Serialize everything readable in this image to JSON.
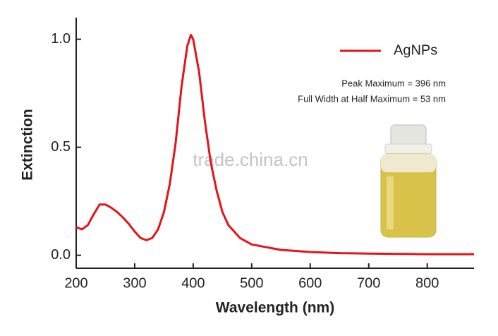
{
  "chart_data": {
    "type": "line",
    "xlabel": "Wavelength (nm)",
    "ylabel": "Extinction",
    "x": [
      200,
      210,
      220,
      230,
      240,
      250,
      260,
      270,
      280,
      290,
      300,
      310,
      320,
      330,
      340,
      350,
      360,
      370,
      380,
      390,
      396,
      400,
      410,
      420,
      430,
      440,
      450,
      460,
      480,
      500,
      550,
      600,
      650,
      700,
      800,
      880
    ],
    "series": [
      {
        "name": "AgNPs",
        "color": "#e3141b",
        "values": [
          0.13,
          0.12,
          0.14,
          0.19,
          0.235,
          0.235,
          0.22,
          0.2,
          0.175,
          0.145,
          0.11,
          0.08,
          0.07,
          0.08,
          0.12,
          0.2,
          0.33,
          0.52,
          0.78,
          0.97,
          1.02,
          1.0,
          0.85,
          0.62,
          0.43,
          0.3,
          0.2,
          0.14,
          0.08,
          0.05,
          0.025,
          0.015,
          0.01,
          0.008,
          0.005,
          0.005
        ]
      }
    ],
    "xlim": [
      200,
      880
    ],
    "ylim": [
      -0.06,
      1.1
    ],
    "xticks": [
      200,
      300,
      400,
      500,
      600,
      700,
      800
    ],
    "yticks": [
      {
        "value": 0,
        "label": "0.0"
      },
      {
        "value": 0.5,
        "label": "0.5"
      },
      {
        "value": 1,
        "label": "1.0"
      }
    ],
    "legend": "top-right",
    "annotations": [
      "Peak Maximum = 396 nm",
      "Full Width at Half Maximum =  53  nm"
    ],
    "watermark": "trade.china.cn"
  }
}
